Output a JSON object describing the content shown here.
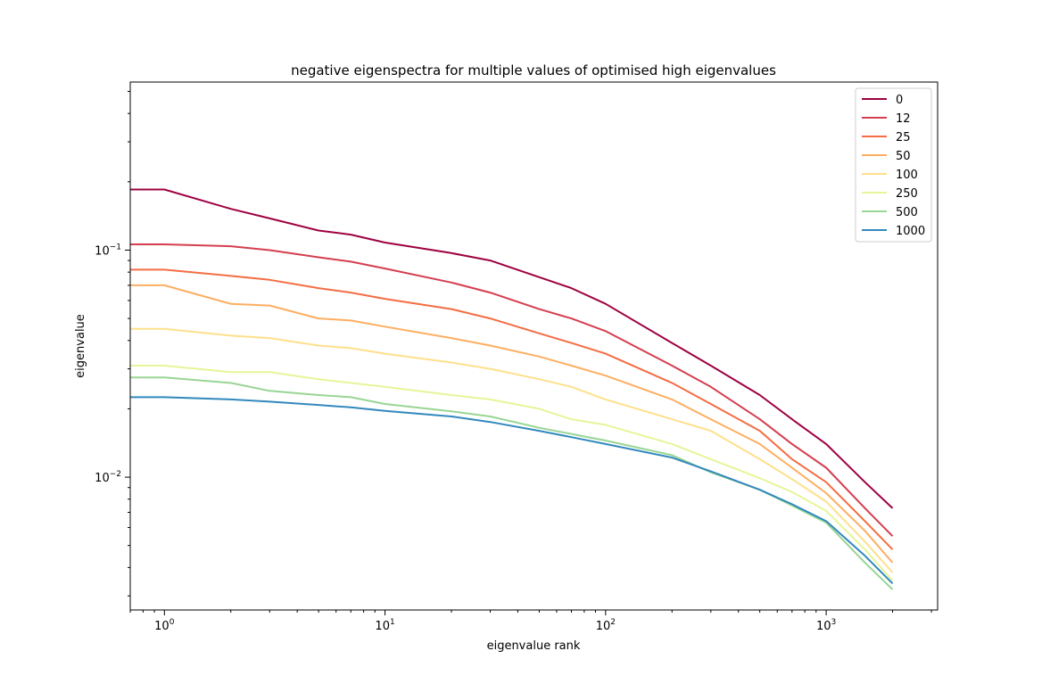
{
  "chart_data": {
    "type": "line",
    "title": "negative eigenspectra for multiple values of optimised high eigenvalues",
    "xlabel": "eigenvalue rank",
    "ylabel": "eigenvalue",
    "x_scale": "log",
    "y_scale": "log",
    "xlim": [
      0.7,
      3200
    ],
    "ylim": [
      0.0026,
      0.55
    ],
    "x_ticks": [
      {
        "value": 1,
        "base": "10",
        "exp": "0"
      },
      {
        "value": 10,
        "base": "10",
        "exp": "1"
      },
      {
        "value": 100,
        "base": "10",
        "exp": "2"
      },
      {
        "value": 1000,
        "base": "10",
        "exp": "3"
      }
    ],
    "y_ticks": [
      {
        "value": 0.01,
        "base": "10",
        "exp": "−2"
      },
      {
        "value": 0.1,
        "base": "10",
        "exp": "−1"
      }
    ],
    "grid": false,
    "legend_position": "top-right",
    "x": [
      0.7,
      1,
      2,
      3,
      5,
      7,
      10,
      20,
      30,
      50,
      70,
      100,
      200,
      300,
      500,
      700,
      1000,
      1500,
      2000
    ],
    "series": [
      {
        "name": "0",
        "color": "#9e0142",
        "values": [
          0.185,
          0.185,
          0.152,
          0.138,
          0.122,
          0.117,
          0.108,
          0.097,
          0.09,
          0.076,
          0.068,
          0.058,
          0.039,
          0.031,
          0.023,
          0.018,
          0.014,
          0.0095,
          0.0073
        ]
      },
      {
        "name": "12",
        "color": "#d53e4f",
        "values": [
          0.106,
          0.106,
          0.104,
          0.1,
          0.093,
          0.089,
          0.083,
          0.072,
          0.065,
          0.055,
          0.05,
          0.044,
          0.031,
          0.025,
          0.018,
          0.014,
          0.011,
          0.0073,
          0.0055
        ]
      },
      {
        "name": "25",
        "color": "#f46d43",
        "values": [
          0.082,
          0.082,
          0.077,
          0.074,
          0.068,
          0.065,
          0.061,
          0.055,
          0.05,
          0.043,
          0.039,
          0.035,
          0.026,
          0.021,
          0.016,
          0.012,
          0.0095,
          0.0064,
          0.0048
        ]
      },
      {
        "name": "50",
        "color": "#fdae61",
        "values": [
          0.07,
          0.07,
          0.058,
          0.057,
          0.05,
          0.049,
          0.046,
          0.041,
          0.038,
          0.034,
          0.031,
          0.028,
          0.022,
          0.018,
          0.014,
          0.011,
          0.0085,
          0.0058,
          0.0042
        ]
      },
      {
        "name": "100",
        "color": "#fee08b",
        "values": [
          0.045,
          0.045,
          0.042,
          0.041,
          0.038,
          0.037,
          0.035,
          0.032,
          0.03,
          0.027,
          0.025,
          0.022,
          0.018,
          0.016,
          0.012,
          0.0098,
          0.0078,
          0.0052,
          0.0038
        ]
      },
      {
        "name": "250",
        "color": "#e6f598",
        "values": [
          0.031,
          0.031,
          0.029,
          0.029,
          0.027,
          0.026,
          0.025,
          0.023,
          0.022,
          0.02,
          0.018,
          0.017,
          0.014,
          0.012,
          0.0099,
          0.0086,
          0.0071,
          0.0048,
          0.0035
        ]
      },
      {
        "name": "500",
        "color": "#99d594",
        "values": [
          0.0275,
          0.0275,
          0.026,
          0.024,
          0.023,
          0.0225,
          0.021,
          0.0195,
          0.0185,
          0.0165,
          0.0155,
          0.0145,
          0.0125,
          0.0105,
          0.0088,
          0.0075,
          0.0063,
          0.0042,
          0.0032
        ]
      },
      {
        "name": "1000",
        "color": "#3288bd",
        "values": [
          0.0225,
          0.0225,
          0.022,
          0.0215,
          0.0208,
          0.0203,
          0.0196,
          0.0185,
          0.0175,
          0.016,
          0.015,
          0.014,
          0.0122,
          0.0106,
          0.0088,
          0.0076,
          0.0064,
          0.0045,
          0.0034
        ]
      }
    ]
  }
}
